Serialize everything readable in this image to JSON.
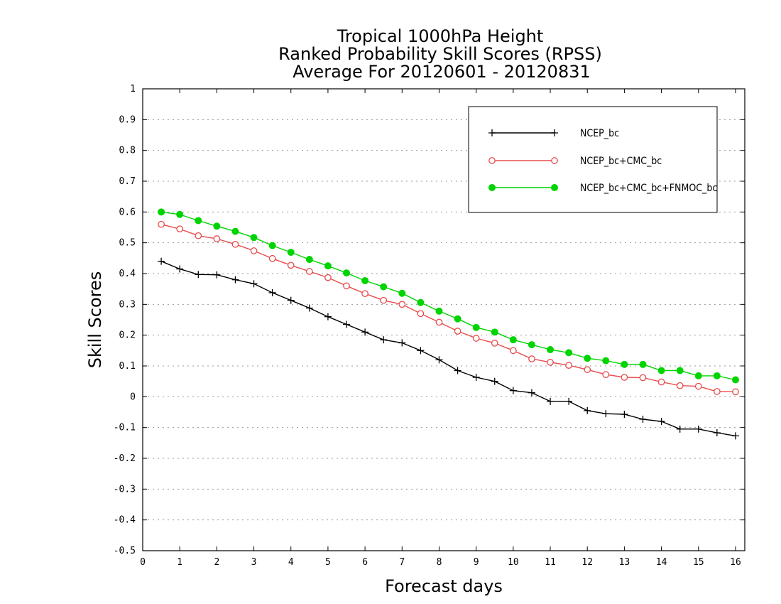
{
  "chart_data": {
    "type": "line",
    "title": [
      "Tropical 1000hPa Height",
      "Ranked Probability Skill Scores (RPSS)",
      "Average For 20120601 - 20120831"
    ],
    "xlabel": "Forecast days",
    "ylabel": "Skill Scores",
    "xlim": [
      0,
      16.25
    ],
    "ylim": [
      -0.5,
      1
    ],
    "xticks": [
      0,
      1,
      2,
      3,
      4,
      5,
      6,
      7,
      8,
      9,
      10,
      11,
      12,
      13,
      14,
      15,
      16
    ],
    "xtick_labels": [
      "0",
      "1",
      "2",
      "3",
      "4",
      "5",
      "6",
      "7",
      "8",
      "9",
      "10",
      "11",
      "12",
      "13",
      "14",
      "15",
      "16"
    ],
    "yticks": [
      -0.5,
      -0.4,
      -0.3,
      -0.2,
      -0.1,
      0,
      0.1,
      0.2,
      0.3,
      0.4,
      0.5,
      0.6,
      0.7,
      0.8,
      0.9,
      1
    ],
    "ytick_labels": [
      "-0.5",
      "-0.4",
      "-0.3",
      "-0.2",
      "-0.1",
      "0",
      "0.1",
      "0.2",
      "0.3",
      "0.4",
      "0.5",
      "0.6",
      "0.7",
      "0.8",
      "0.9",
      "1"
    ],
    "grid": "horizontal dotted",
    "legend_position": "top-right",
    "x": [
      0.5,
      1,
      1.5,
      2,
      2.5,
      3,
      3.5,
      4,
      4.5,
      5,
      5.5,
      6,
      6.5,
      7,
      7.5,
      8,
      8.5,
      9,
      9.5,
      10,
      10.5,
      11,
      11.5,
      12,
      12.5,
      13,
      13.5,
      14,
      14.5,
      15,
      15.5,
      16
    ],
    "series": [
      {
        "name": "NCEP_bc",
        "color": "#000000",
        "marker": "plus",
        "values": [
          0.44,
          0.415,
          0.397,
          0.396,
          0.38,
          0.367,
          0.338,
          0.313,
          0.288,
          0.26,
          0.235,
          0.21,
          0.185,
          0.175,
          0.15,
          0.12,
          0.085,
          0.063,
          0.05,
          0.02,
          0.013,
          -0.015,
          -0.015,
          -0.045,
          -0.055,
          -0.057,
          -0.073,
          -0.08,
          -0.105,
          -0.105,
          -0.117,
          -0.127
        ]
      },
      {
        "name": "NCEP_bc+CMC_bc",
        "color": "#e84b4b",
        "marker": "open-circle",
        "values": [
          0.56,
          0.545,
          0.523,
          0.513,
          0.495,
          0.474,
          0.449,
          0.427,
          0.407,
          0.387,
          0.36,
          0.335,
          0.313,
          0.3,
          0.27,
          0.242,
          0.213,
          0.19,
          0.174,
          0.15,
          0.123,
          0.112,
          0.102,
          0.088,
          0.072,
          0.063,
          0.062,
          0.048,
          0.036,
          0.034,
          0.017,
          0.016
        ]
      },
      {
        "name": "NCEP_bc+CMC_bc+FNMOC_bc",
        "color": "#00d400",
        "marker": "filled-circle",
        "values": [
          0.6,
          0.592,
          0.572,
          0.554,
          0.537,
          0.517,
          0.491,
          0.469,
          0.446,
          0.425,
          0.402,
          0.377,
          0.357,
          0.336,
          0.306,
          0.278,
          0.253,
          0.225,
          0.21,
          0.185,
          0.169,
          0.153,
          0.143,
          0.125,
          0.117,
          0.105,
          0.105,
          0.085,
          0.085,
          0.068,
          0.068,
          0.055
        ]
      }
    ]
  }
}
